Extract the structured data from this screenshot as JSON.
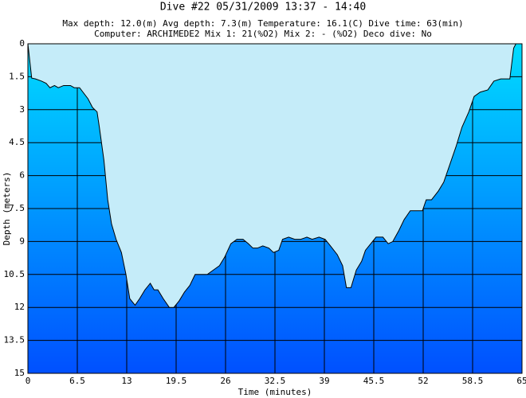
{
  "chart_data": {
    "type": "area",
    "title": "Dive #22  05/31/2009  13:37 - 14:40",
    "info": [
      "Max depth: 12.0(m)   Avg depth: 7.3(m)   Temperature: 16.1(C)   Dive time: 63(min)",
      "Computer: ARCHIMEDE2   Mix 1: 21(%O2)   Mix 2: - (%O2)   Deco dive:  No"
    ],
    "x_label": "Time (minutes)",
    "y_label": "Depth (meters)",
    "inverted_y": true,
    "grid": true,
    "fill_color": "#c5ecf9",
    "gradient_colors": [
      "#00dcff",
      "#0050ff"
    ],
    "xlim": [
      0,
      65
    ],
    "xticks": [
      0,
      6.5,
      13,
      19.5,
      26,
      32.5,
      39,
      45.5,
      52,
      58.5,
      65
    ],
    "ylim": [
      0,
      15
    ],
    "yticks": [
      0,
      1.5,
      3,
      4.5,
      6,
      7.5,
      9,
      10.5,
      12,
      13.5,
      15
    ],
    "x": [
      0,
      0.5,
      1.0,
      1.8,
      2.4,
      2.9,
      3.5,
      4.0,
      4.7,
      5.6,
      6.1,
      6.8,
      7.9,
      8.5,
      9.1,
      9.4,
      10.0,
      10.5,
      11.0,
      11.6,
      12.3,
      12.9,
      13.4,
      14.1,
      14.7,
      15.4,
      16.1,
      16.6,
      17.1,
      17.8,
      18.6,
      19.2,
      19.9,
      20.6,
      21.3,
      22.0,
      22.8,
      23.6,
      24.4,
      25.2,
      25.9,
      26.7,
      27.5,
      28.3,
      29.0,
      29.6,
      30.2,
      30.9,
      31.7,
      32.3,
      33.0,
      33.5,
      34.3,
      35.1,
      35.9,
      36.7,
      37.4,
      38.3,
      39.1,
      39.8,
      40.7,
      41.4,
      41.9,
      42.5,
      43.2,
      43.9,
      44.4,
      45.1,
      45.8,
      46.7,
      47.4,
      48.0,
      48.8,
      49.5,
      50.3,
      51.1,
      51.9,
      52.4,
      53.1,
      54.0,
      54.7,
      55.6,
      56.3,
      57.1,
      58.0,
      58.7,
      59.5,
      60.5,
      61.3,
      62.2,
      63.4,
      63.9,
      64.2
    ],
    "y": [
      0,
      1.56,
      1.6,
      1.7,
      1.8,
      2.0,
      1.9,
      2.0,
      1.9,
      1.9,
      2.0,
      2.0,
      2.5,
      2.9,
      3.1,
      3.8,
      5.3,
      7.1,
      8.2,
      8.9,
      9.5,
      10.5,
      11.6,
      11.9,
      11.6,
      11.2,
      10.9,
      11.2,
      11.2,
      11.6,
      12.0,
      12.0,
      11.7,
      11.3,
      11.0,
      10.5,
      10.5,
      10.5,
      10.3,
      10.1,
      9.7,
      9.1,
      8.9,
      8.9,
      9.1,
      9.3,
      9.3,
      9.2,
      9.3,
      9.5,
      9.4,
      8.9,
      8.8,
      8.9,
      8.9,
      8.8,
      8.9,
      8.8,
      8.9,
      9.2,
      9.6,
      10.1,
      11.1,
      11.1,
      10.3,
      9.9,
      9.4,
      9.1,
      8.8,
      8.8,
      9.1,
      9.0,
      8.5,
      8.0,
      7.6,
      7.6,
      7.6,
      7.1,
      7.1,
      6.7,
      6.3,
      5.4,
      4.7,
      3.8,
      3.1,
      2.4,
      2.2,
      2.1,
      1.7,
      1.6,
      1.6,
      0.2,
      0
    ]
  }
}
